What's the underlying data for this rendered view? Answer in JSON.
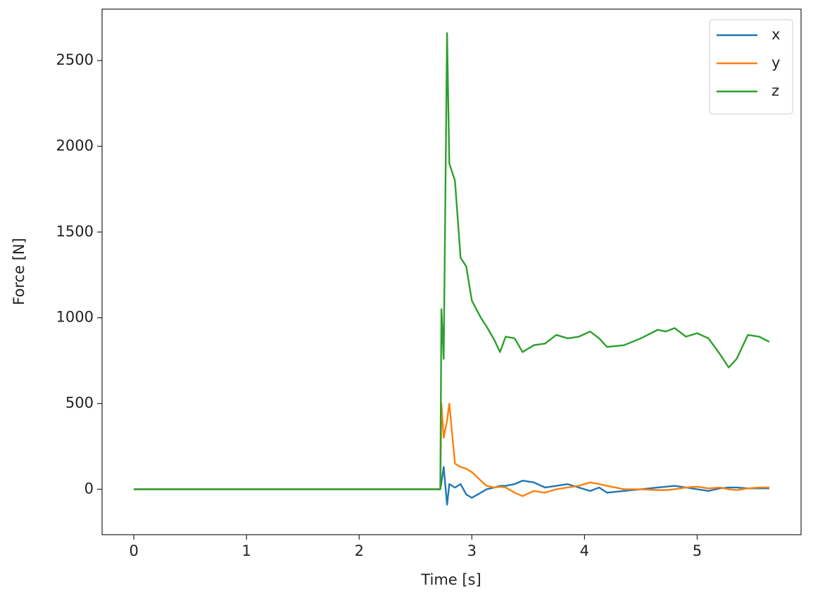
{
  "chart_data": {
    "type": "line",
    "xlabel": "Time [s]",
    "ylabel": "Force [N]",
    "x": [
      0,
      2.7,
      2.72,
      2.73,
      2.75,
      2.78,
      2.8,
      2.85,
      2.9,
      2.95,
      3.0,
      3.08,
      3.13,
      3.2,
      3.25,
      3.3,
      3.38,
      3.45,
      3.55,
      3.65,
      3.75,
      3.85,
      3.95,
      4.05,
      4.13,
      4.2,
      4.35,
      4.5,
      4.65,
      4.72,
      4.8,
      4.9,
      5.0,
      5.1,
      5.2,
      5.28,
      5.35,
      5.45,
      5.55,
      5.64
    ],
    "series": [
      {
        "name": "x",
        "color": "#1f77b4",
        "values": [
          0,
          0,
          0,
          40,
          130,
          -90,
          30,
          10,
          30,
          -30,
          -50,
          -20,
          0,
          10,
          20,
          20,
          30,
          50,
          40,
          10,
          20,
          30,
          10,
          -10,
          10,
          -20,
          -10,
          0,
          10,
          15,
          20,
          10,
          0,
          -10,
          5,
          10,
          10,
          5,
          5,
          5
        ]
      },
      {
        "name": "y",
        "color": "#ff7f0e",
        "values": [
          0,
          0,
          0,
          500,
          300,
          400,
          500,
          150,
          130,
          120,
          100,
          50,
          20,
          10,
          15,
          10,
          -20,
          -40,
          -10,
          -20,
          0,
          10,
          20,
          40,
          30,
          20,
          0,
          0,
          -5,
          -5,
          0,
          10,
          15,
          5,
          10,
          0,
          -5,
          5,
          10,
          10
        ]
      },
      {
        "name": "z",
        "color": "#2ca02c",
        "values": [
          0,
          0,
          0,
          1050,
          760,
          2660,
          1900,
          1800,
          1350,
          1300,
          1100,
          1000,
          950,
          870,
          800,
          890,
          880,
          800,
          840,
          850,
          900,
          880,
          890,
          920,
          880,
          830,
          840,
          880,
          930,
          920,
          940,
          890,
          910,
          880,
          790,
          710,
          760,
          900,
          890,
          860
        ]
      }
    ],
    "xlim": [
      -0.282,
      5.922
    ],
    "ylim": [
      -265,
      2800
    ],
    "xticks": [
      0,
      1,
      2,
      3,
      4,
      5
    ],
    "yticks": [
      0,
      500,
      1000,
      1500,
      2000,
      2500
    ],
    "legend": "upper right",
    "grid": false
  }
}
